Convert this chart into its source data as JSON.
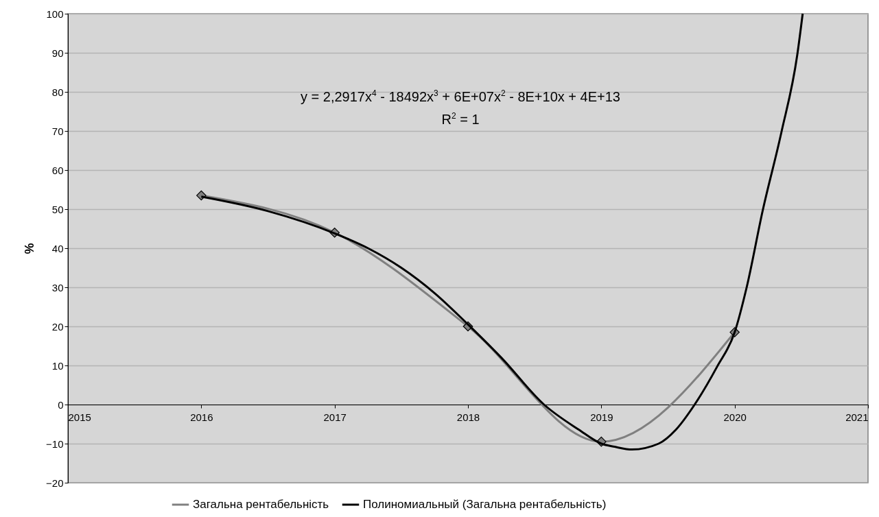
{
  "chart_data": {
    "type": "line",
    "ylabel": "%",
    "annotations": [
      "y = 2,2917x$^{4}$ - 18492x$^{3}$ + 6E+07x$^{2}$ - 8E+10x + 4E+13",
      "R$^{2}$ = 1"
    ],
    "xlim": [
      2015,
      2021
    ],
    "xticks": [
      2015,
      2016,
      2017,
      2018,
      2019,
      2020,
      2021
    ],
    "ylim": [
      -20,
      100
    ],
    "yticks": [
      -20,
      -10,
      0,
      10,
      20,
      30,
      40,
      50,
      60,
      70,
      80,
      90,
      100
    ],
    "grid": "y",
    "legend": "bottom",
    "series": [
      {
        "name": "Загальна рентабельність",
        "color": "#808080",
        "marker": "diamond",
        "x": [
          2016,
          2017,
          2018,
          2019,
          2020
        ],
        "values": [
          53.5,
          44,
          20,
          -9.5,
          18.5
        ]
      },
      {
        "name": "Полиномиальный (Загальна рентабельність)",
        "color": "#000000",
        "type": "line",
        "marker": "none",
        "x": [
          2016,
          2016.5,
          2017,
          2017.25,
          2017.5,
          2017.75,
          2018,
          2018.25,
          2018.57,
          2018.83,
          2019,
          2019.1,
          2019.23,
          2019.43,
          2019.56,
          2019.7,
          2019.87,
          2020,
          2020.09,
          2020.21,
          2020.35,
          2020.47,
          2020.51
        ],
        "values": [
          53.2,
          49.5,
          43.8,
          40,
          35,
          28.5,
          20.5,
          12,
          0,
          -6.4,
          -10,
          -10.8,
          -11.5,
          -10,
          -6.4,
          0,
          9.8,
          18.5,
          30,
          49.6,
          69.6,
          89.6,
          100
        ]
      }
    ]
  }
}
